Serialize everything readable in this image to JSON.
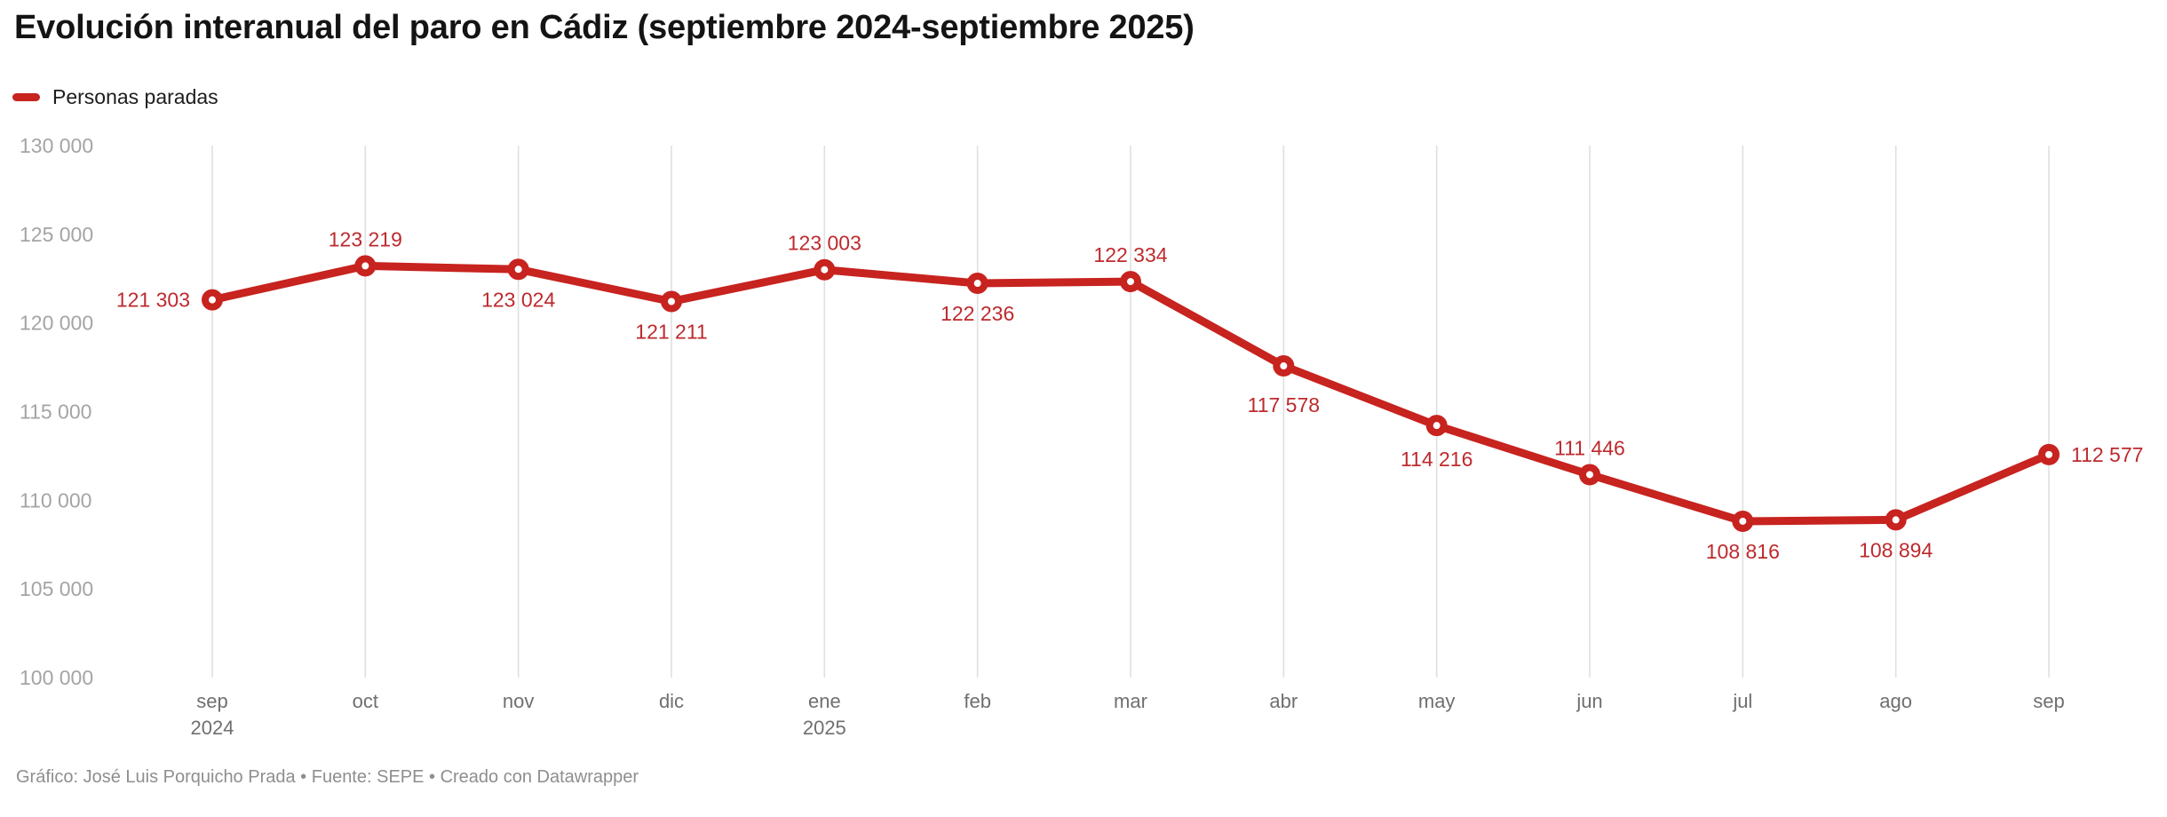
{
  "header": {
    "title": "Evolución interanual del paro en Cádiz (septiembre 2024-septiembre 2025)"
  },
  "legend": {
    "label": "Personas paradas",
    "swatch_color": "#c7231f"
  },
  "colors": {
    "series": "#c7231f",
    "data_label": "#bd2a2e",
    "grid": "#e0e0e0",
    "y_tick_label": "#a4a4a4",
    "x_tick_label": "#6f6f6f",
    "title": "#141414",
    "footer": "#8e8e8e",
    "background": "#ffffff"
  },
  "chart_data": {
    "type": "line",
    "title": "Evolución interanual del paro en Cádiz (septiembre 2024-septiembre 2025)",
    "xlabel": "",
    "ylabel": "",
    "x": [
      "sep",
      "oct",
      "nov",
      "dic",
      "ene",
      "feb",
      "mar",
      "abr",
      "may",
      "jun",
      "jul",
      "ago",
      "sep"
    ],
    "x_year_marks": [
      {
        "index": 0,
        "label": "2024"
      },
      {
        "index": 4,
        "label": "2025"
      }
    ],
    "series": [
      {
        "name": "Personas paradas",
        "color": "#c7231f",
        "values": [
          121303,
          123219,
          123024,
          121211,
          123003,
          122236,
          122334,
          117578,
          114216,
          111446,
          108816,
          108894,
          112577
        ],
        "point_labels": [
          "121 303",
          "123 219",
          "123 024",
          "121 211",
          "123 003",
          "122 236",
          "122 334",
          "117 578",
          "114 216",
          "111 446",
          "108 816",
          "108 894",
          "112 577"
        ],
        "label_placement": [
          "left",
          "above",
          "below",
          "below",
          "above",
          "below",
          "above",
          "below",
          "below",
          "above",
          "below",
          "below",
          "right"
        ]
      }
    ],
    "ylim": [
      100000,
      130000
    ],
    "y_ticks": [
      {
        "value": 130000,
        "label": "130 000"
      },
      {
        "value": 125000,
        "label": "125 000"
      },
      {
        "value": 120000,
        "label": "120 000"
      },
      {
        "value": 115000,
        "label": "115 000"
      },
      {
        "value": 110000,
        "label": "110 000"
      },
      {
        "value": 105000,
        "label": "105 000"
      },
      {
        "value": 100000,
        "label": "100 000"
      }
    ],
    "grid": "vertical-only",
    "legend_position": "top-left"
  },
  "footer": {
    "credits": "Gráfico: José Luis Porquicho Prada • Fuente: SEPE • Creado con Datawrapper"
  }
}
